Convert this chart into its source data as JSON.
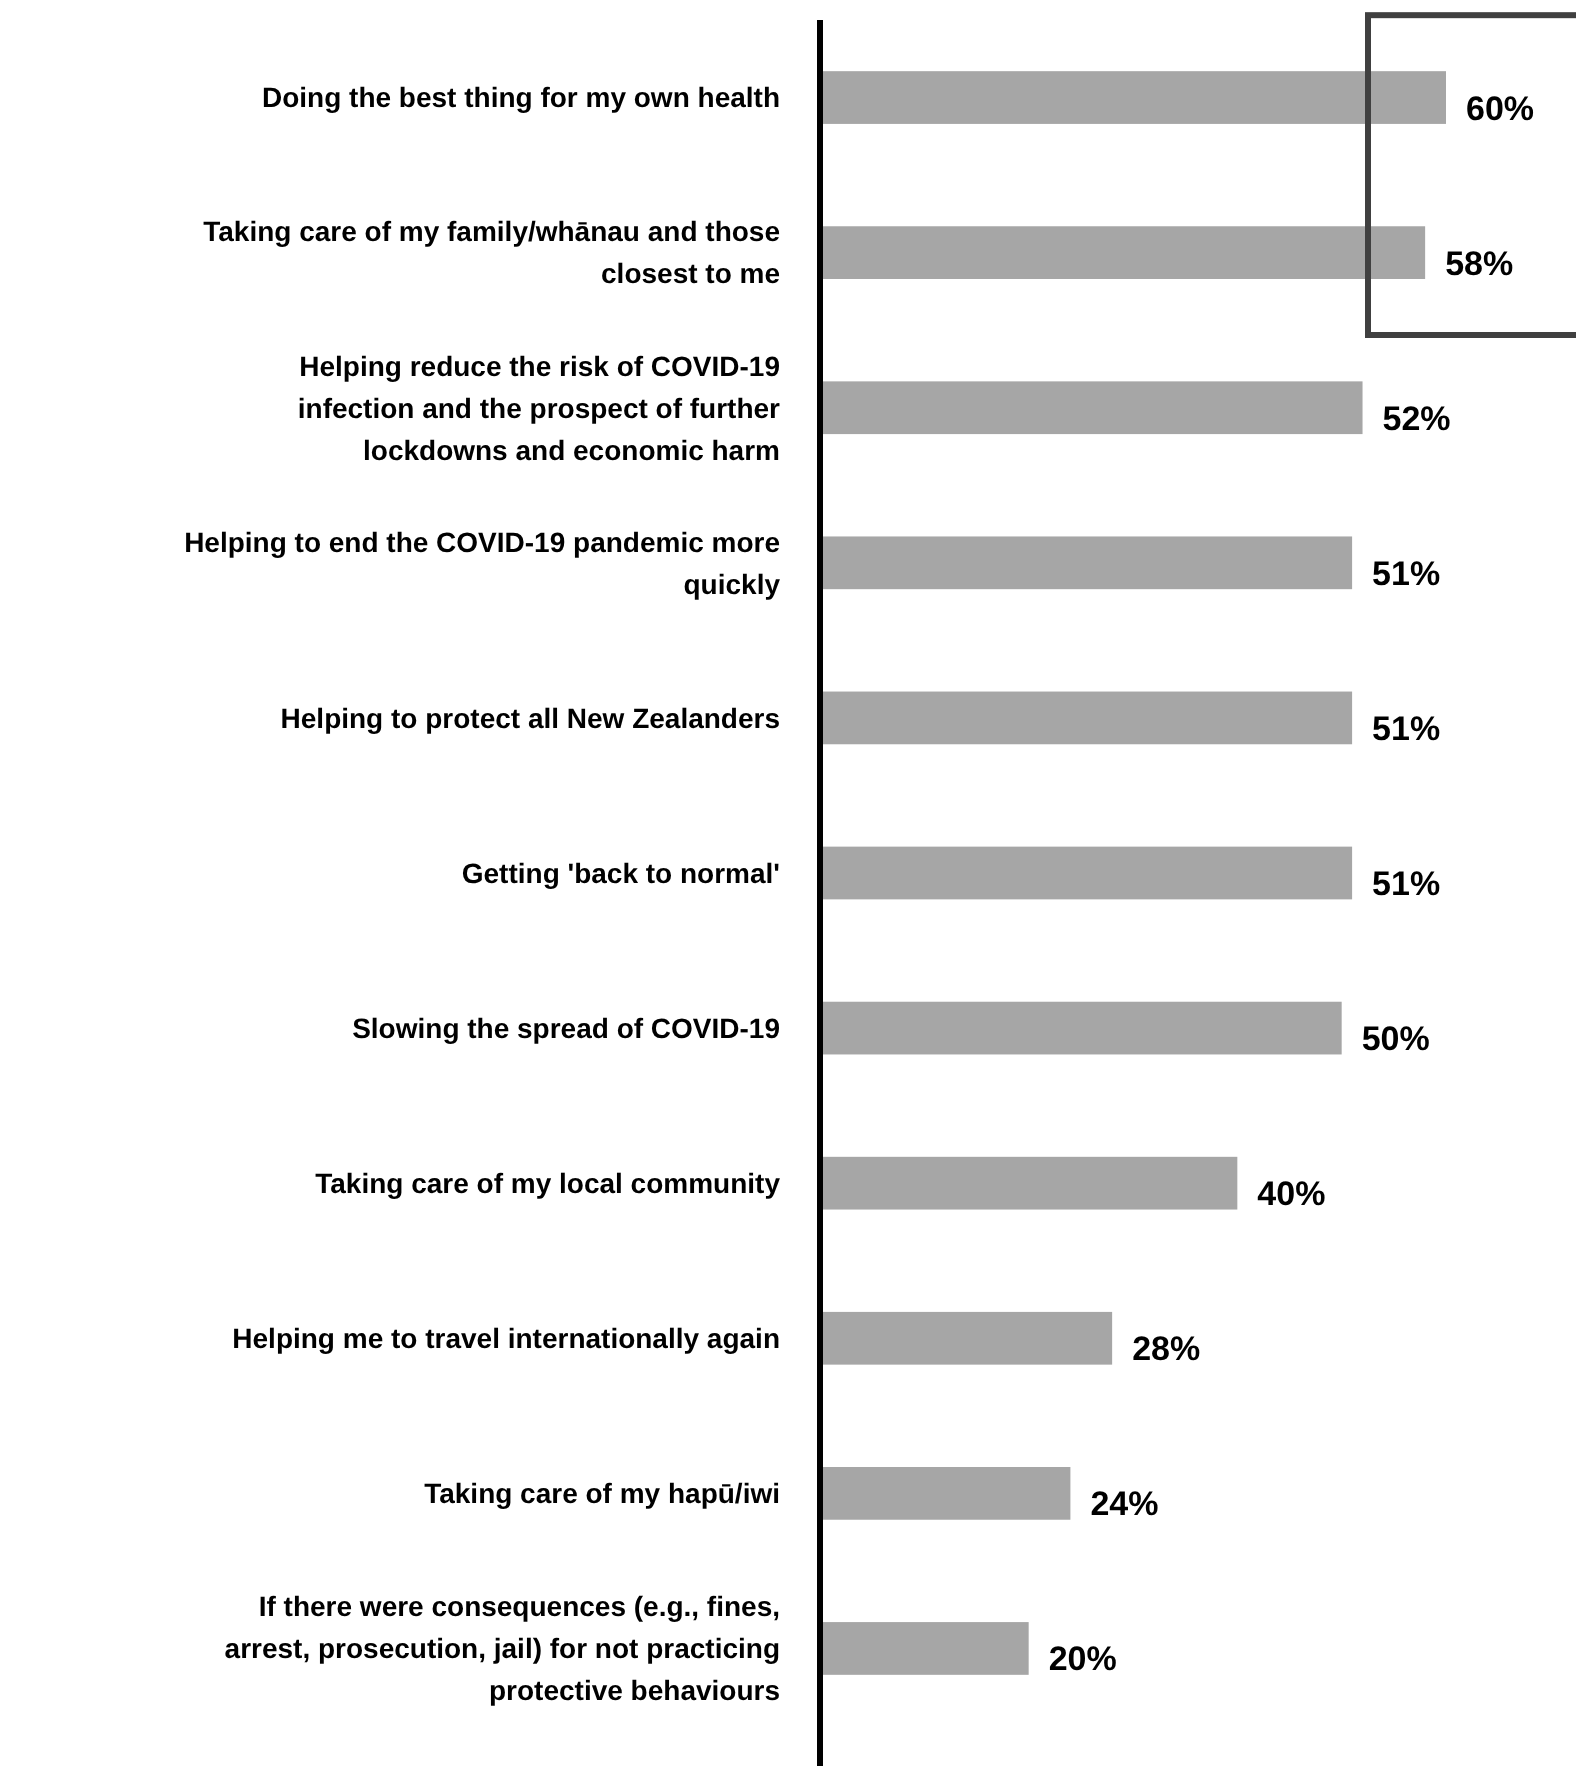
{
  "chart_data": {
    "type": "bar",
    "orientation": "horizontal",
    "categories": [
      "Doing the best thing for my own health",
      "Taking care of my family/whānau and those closest to me",
      "Helping reduce the risk of COVID-19 infection and the prospect of further lockdowns and economic harm",
      "Helping to end the COVID-19 pandemic more quickly",
      "Helping to protect all New Zealanders",
      "Getting 'back to normal'",
      "Slowing the spread of COVID-19",
      "Taking care of my local community",
      "Helping me to travel internationally again",
      "Taking care of my hapū/iwi",
      "If there were consequences (e.g., fines, arrest, prosecution, jail) for not practicing protective behaviours"
    ],
    "values": [
      60,
      58,
      52,
      51,
      51,
      51,
      50,
      40,
      28,
      24,
      20
    ],
    "value_labels": [
      "60%",
      "58%",
      "52%",
      "51%",
      "51%",
      "51%",
      "50%",
      "40%",
      "28%",
      "24%",
      "20%"
    ],
    "color": "#a6a6a6"
  }
}
